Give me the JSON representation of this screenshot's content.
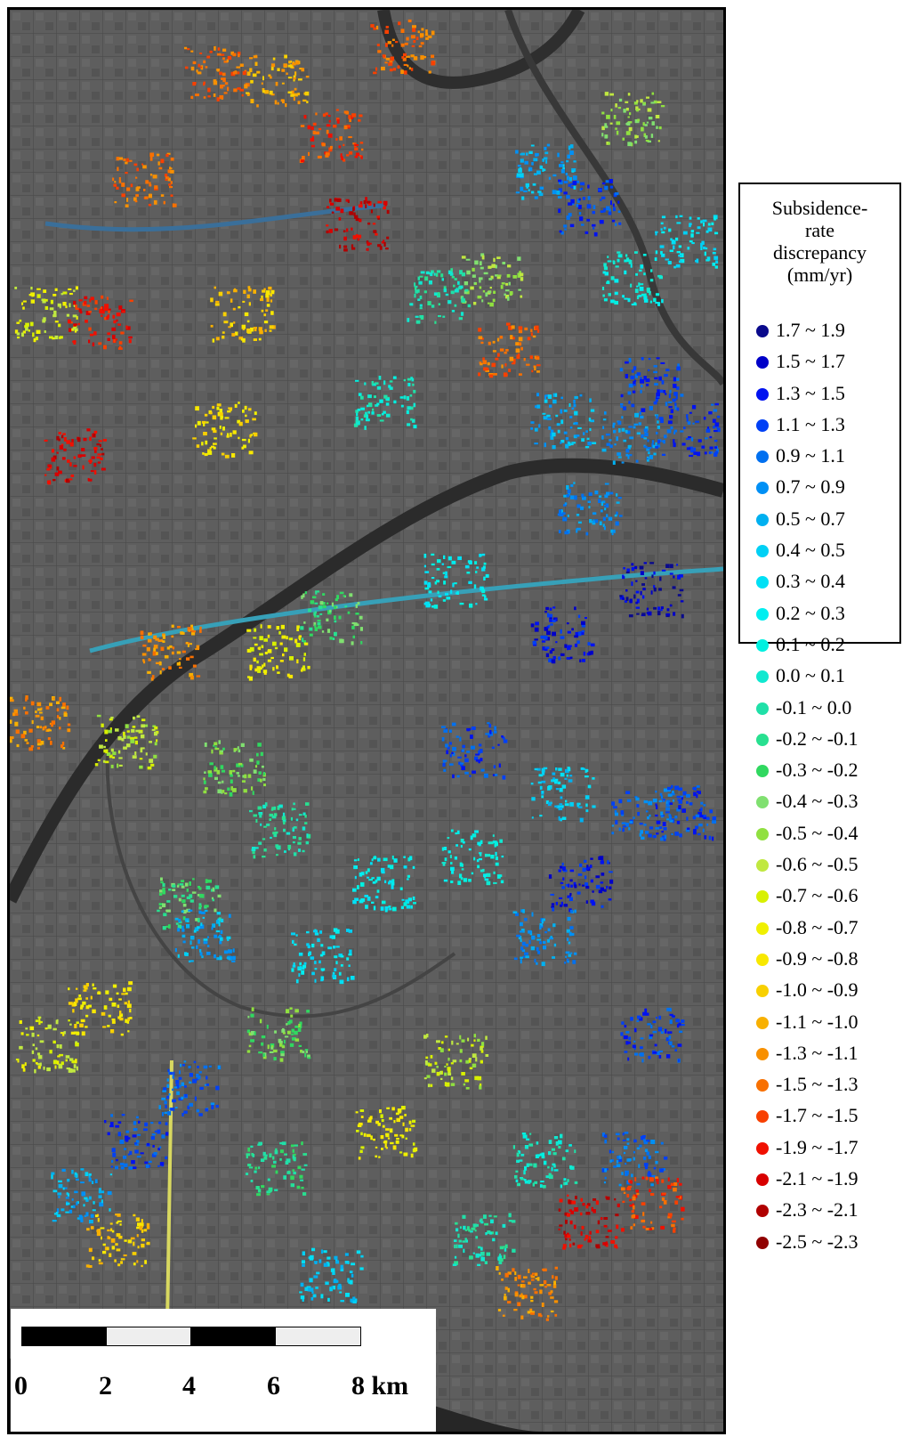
{
  "legend": {
    "title_lines": [
      "Subsidence-",
      "rate",
      "discrepancy",
      "(mm/yr)"
    ],
    "items": [
      {
        "label": "1.7 ~ 1.9",
        "color": "#0a0a8c"
      },
      {
        "label": "1.5 ~ 1.7",
        "color": "#0000c8"
      },
      {
        "label": "1.3 ~ 1.5",
        "color": "#0012f0"
      },
      {
        "label": "1.1 ~ 1.3",
        "color": "#0040f5"
      },
      {
        "label": "0.9 ~ 1.1",
        "color": "#0070f0"
      },
      {
        "label": "0.7 ~ 0.9",
        "color": "#0090f5"
      },
      {
        "label": "0.5 ~ 0.7",
        "color": "#00b0f0"
      },
      {
        "label": "0.4 ~ 0.5",
        "color": "#00d0f5"
      },
      {
        "label": "0.3 ~ 0.4",
        "color": "#00e0f5"
      },
      {
        "label": "0.2 ~ 0.3",
        "color": "#00eef0"
      },
      {
        "label": "0.1 ~ 0.2",
        "color": "#00f0e0"
      },
      {
        "label": "0.0 ~ 0.1",
        "color": "#10e8d0"
      },
      {
        "label": "-0.1 ~ 0.0",
        "color": "#20e0a8"
      },
      {
        "label": "-0.2 ~ -0.1",
        "color": "#28e090"
      },
      {
        "label": "-0.3 ~ -0.2",
        "color": "#30d860"
      },
      {
        "label": "-0.4 ~ -0.3",
        "color": "#80e070"
      },
      {
        "label": "-0.5 ~ -0.4",
        "color": "#90e040"
      },
      {
        "label": "-0.6 ~ -0.5",
        "color": "#c0e840"
      },
      {
        "label": "-0.7 ~ -0.6",
        "color": "#d8f000"
      },
      {
        "label": "-0.8 ~ -0.7",
        "color": "#f0f000"
      },
      {
        "label": "-0.9 ~ -0.8",
        "color": "#f8e800"
      },
      {
        "label": "-1.0 ~ -0.9",
        "color": "#f8d000"
      },
      {
        "label": "-1.1 ~ -1.0",
        "color": "#f8b000"
      },
      {
        "label": "-1.3 ~ -1.1",
        "color": "#f89000"
      },
      {
        "label": "-1.5 ~ -1.3",
        "color": "#f87000"
      },
      {
        "label": "-1.7 ~ -1.5",
        "color": "#f84000"
      },
      {
        "label": "-1.9 ~ -1.7",
        "color": "#f01000"
      },
      {
        "label": "-2.1 ~ -1.9",
        "color": "#d80000"
      },
      {
        "label": "-2.3 ~ -2.1",
        "color": "#b00000"
      },
      {
        "label": "-2.5 ~ -2.3",
        "color": "#900000"
      }
    ]
  },
  "scale_bar": {
    "ticks": [
      "0",
      "2",
      "4",
      "6",
      "8 km"
    ]
  }
}
